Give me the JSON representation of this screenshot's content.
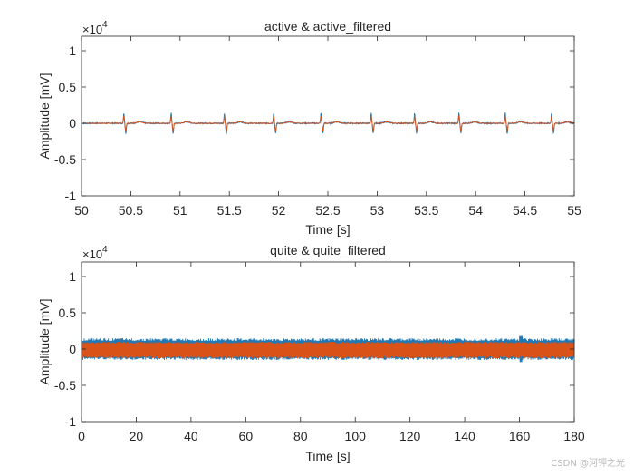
{
  "colors": {
    "series1": "#1f77b4",
    "series2": "#d95319",
    "axis": "#262626"
  },
  "watermark": "CSDN @河钾之光",
  "chart_data": [
    {
      "type": "line",
      "title": "active & active_filtered",
      "xlabel": "Time [s]",
      "ylabel": "Amplitude [mV]",
      "xlim": [
        50,
        55
      ],
      "ylim": [
        -1,
        1.2
      ],
      "y_exponent_label": "×10",
      "y_exponent": "4",
      "grid": false,
      "xticks": [
        50,
        50.5,
        51,
        51.5,
        52,
        52.5,
        53,
        53.5,
        54,
        54.5,
        55
      ],
      "xtick_labels": [
        "50",
        "50.5",
        "51",
        "51.5",
        "52",
        "52.5",
        "53",
        "53.5",
        "54",
        "54.5",
        "55"
      ],
      "yticks": [
        -1,
        -0.5,
        0,
        0.5,
        1
      ],
      "ytick_labels": [
        "-1",
        "-0.5",
        "0",
        "0.5",
        "1"
      ],
      "series": [
        {
          "name": "active",
          "kind": "ecg",
          "beats": [
            50.43,
            50.91,
            51.45,
            51.95,
            52.43,
            52.94,
            53.38,
            53.83,
            54.3,
            54.77
          ],
          "r_peak": 0.14,
          "s_trough": -0.14,
          "noise": 0.008
        },
        {
          "name": "active_filtered",
          "kind": "ecg",
          "beats": [
            50.43,
            50.91,
            51.45,
            51.95,
            52.43,
            52.94,
            53.38,
            53.83,
            54.3,
            54.77
          ],
          "r_peak": 0.1,
          "s_trough": -0.11,
          "noise": 0.004
        }
      ]
    },
    {
      "type": "line",
      "title": "quite & quite_filtered",
      "xlabel": "Time [s]",
      "ylabel": "Amplitude [mV]",
      "xlim": [
        0,
        180
      ],
      "ylim": [
        -1,
        1.2
      ],
      "y_exponent_label": "×10",
      "y_exponent": "4",
      "grid": false,
      "xticks": [
        0,
        20,
        40,
        60,
        80,
        100,
        120,
        140,
        160,
        180
      ],
      "xtick_labels": [
        "0",
        "20",
        "40",
        "60",
        "80",
        "100",
        "120",
        "140",
        "160",
        "180"
      ],
      "yticks": [
        -1,
        -0.5,
        0,
        0.5,
        1
      ],
      "ytick_labels": [
        "-1",
        "-0.5",
        "0",
        "0.5",
        "1"
      ],
      "series": [
        {
          "name": "quite",
          "kind": "dense",
          "envelope": [
            -0.15,
            0.15
          ]
        },
        {
          "name": "quite_filtered",
          "kind": "dense",
          "envelope": [
            -0.13,
            0.1
          ]
        }
      ]
    }
  ]
}
